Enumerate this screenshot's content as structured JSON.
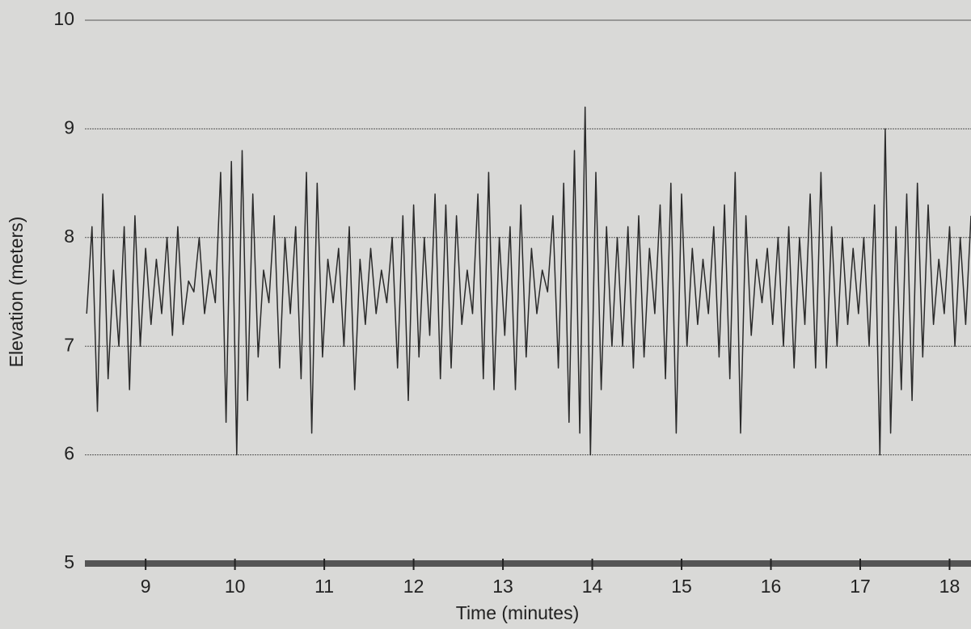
{
  "chart_data": {
    "type": "line",
    "x_label": "Time (minutes)",
    "y_label": "Elevation (meters)",
    "xlim": [
      8.32,
      18.24
    ],
    "ylim": [
      5,
      10
    ],
    "xticks": [
      9,
      10,
      11,
      12,
      13,
      14,
      15,
      16,
      17,
      18
    ],
    "yticks": [
      5,
      6,
      7,
      8,
      9,
      10
    ],
    "grid": true,
    "series": [
      {
        "color": "#2a2a2a",
        "x": [
          8.34,
          8.4,
          8.46,
          8.52,
          8.58,
          8.64,
          8.7,
          8.76,
          8.82,
          8.88,
          8.94,
          9.0,
          9.06,
          9.12,
          9.18,
          9.24,
          9.3,
          9.36,
          9.42,
          9.48,
          9.54,
          9.6,
          9.66,
          9.72,
          9.78,
          9.84,
          9.9,
          9.96,
          10.02,
          10.08,
          10.14,
          10.2,
          10.26,
          10.32,
          10.38,
          10.44,
          10.5,
          10.56,
          10.62,
          10.68,
          10.74,
          10.8,
          10.86,
          10.92,
          10.98,
          11.04,
          11.1,
          11.16,
          11.22,
          11.28,
          11.34,
          11.4,
          11.46,
          11.52,
          11.58,
          11.64,
          11.7,
          11.76,
          11.82,
          11.88,
          11.94,
          12.0,
          12.06,
          12.12,
          12.18,
          12.24,
          12.3,
          12.36,
          12.42,
          12.48,
          12.54,
          12.6,
          12.66,
          12.72,
          12.78,
          12.84,
          12.9,
          12.96,
          13.02,
          13.08,
          13.14,
          13.2,
          13.26,
          13.32,
          13.38,
          13.44,
          13.5,
          13.56,
          13.62,
          13.68,
          13.74,
          13.8,
          13.86,
          13.92,
          13.98,
          14.04,
          14.1,
          14.16,
          14.22,
          14.28,
          14.34,
          14.4,
          14.46,
          14.52,
          14.58,
          14.64,
          14.7,
          14.76,
          14.82,
          14.88,
          14.94,
          15.0,
          15.06,
          15.12,
          15.18,
          15.24,
          15.3,
          15.36,
          15.42,
          15.48,
          15.54,
          15.6,
          15.66,
          15.72,
          15.78,
          15.84,
          15.9,
          15.96,
          16.02,
          16.08,
          16.14,
          16.2,
          16.26,
          16.32,
          16.38,
          16.44,
          16.5,
          16.56,
          16.62,
          16.68,
          16.74,
          16.8,
          16.86,
          16.92,
          16.98,
          17.04,
          17.1,
          17.16,
          17.22,
          17.28,
          17.34,
          17.4,
          17.46,
          17.52,
          17.58,
          17.64,
          17.7,
          17.76,
          17.82,
          17.88,
          17.94,
          18.0,
          18.06,
          18.12,
          18.18,
          18.24
        ],
        "values": [
          7.3,
          8.1,
          6.4,
          8.4,
          6.7,
          7.7,
          7.0,
          8.1,
          6.6,
          8.2,
          7.0,
          7.9,
          7.2,
          7.8,
          7.3,
          8.0,
          7.1,
          8.1,
          7.2,
          7.6,
          7.5,
          8.0,
          7.3,
          7.7,
          7.4,
          8.6,
          6.3,
          8.7,
          6.0,
          8.8,
          6.5,
          8.4,
          6.9,
          7.7,
          7.4,
          8.2,
          6.8,
          8.0,
          7.3,
          8.1,
          6.7,
          8.6,
          6.2,
          8.5,
          6.9,
          7.8,
          7.4,
          7.9,
          7.0,
          8.1,
          6.6,
          7.8,
          7.2,
          7.9,
          7.3,
          7.7,
          7.4,
          8.0,
          6.8,
          8.2,
          6.5,
          8.3,
          6.9,
          8.0,
          7.1,
          8.4,
          6.7,
          8.3,
          6.8,
          8.2,
          7.2,
          7.7,
          7.3,
          8.4,
          6.7,
          8.6,
          6.6,
          8.0,
          7.1,
          8.1,
          6.6,
          8.3,
          6.9,
          7.9,
          7.3,
          7.7,
          7.5,
          8.2,
          6.8,
          8.5,
          6.3,
          8.8,
          6.2,
          9.2,
          6.0,
          8.6,
          6.6,
          8.1,
          7.0,
          8.0,
          7.0,
          8.1,
          6.8,
          8.2,
          6.9,
          7.9,
          7.3,
          8.3,
          6.7,
          8.5,
          6.2,
          8.4,
          7.0,
          7.9,
          7.2,
          7.8,
          7.3,
          8.1,
          6.9,
          8.3,
          6.7,
          8.6,
          6.2,
          8.2,
          7.1,
          7.8,
          7.4,
          7.9,
          7.2,
          8.0,
          7.0,
          8.1,
          6.8,
          8.0,
          7.2,
          8.4,
          6.8,
          8.6,
          6.8,
          8.1,
          7.0,
          8.0,
          7.2,
          7.9,
          7.3,
          8.0,
          7.0,
          8.3,
          6.0,
          9.0,
          6.2,
          8.1,
          6.6,
          8.4,
          6.5,
          8.5,
          6.9,
          8.3,
          7.2,
          7.8,
          7.3,
          8.1,
          7.0,
          8.0,
          7.2,
          8.2
        ]
      }
    ]
  }
}
